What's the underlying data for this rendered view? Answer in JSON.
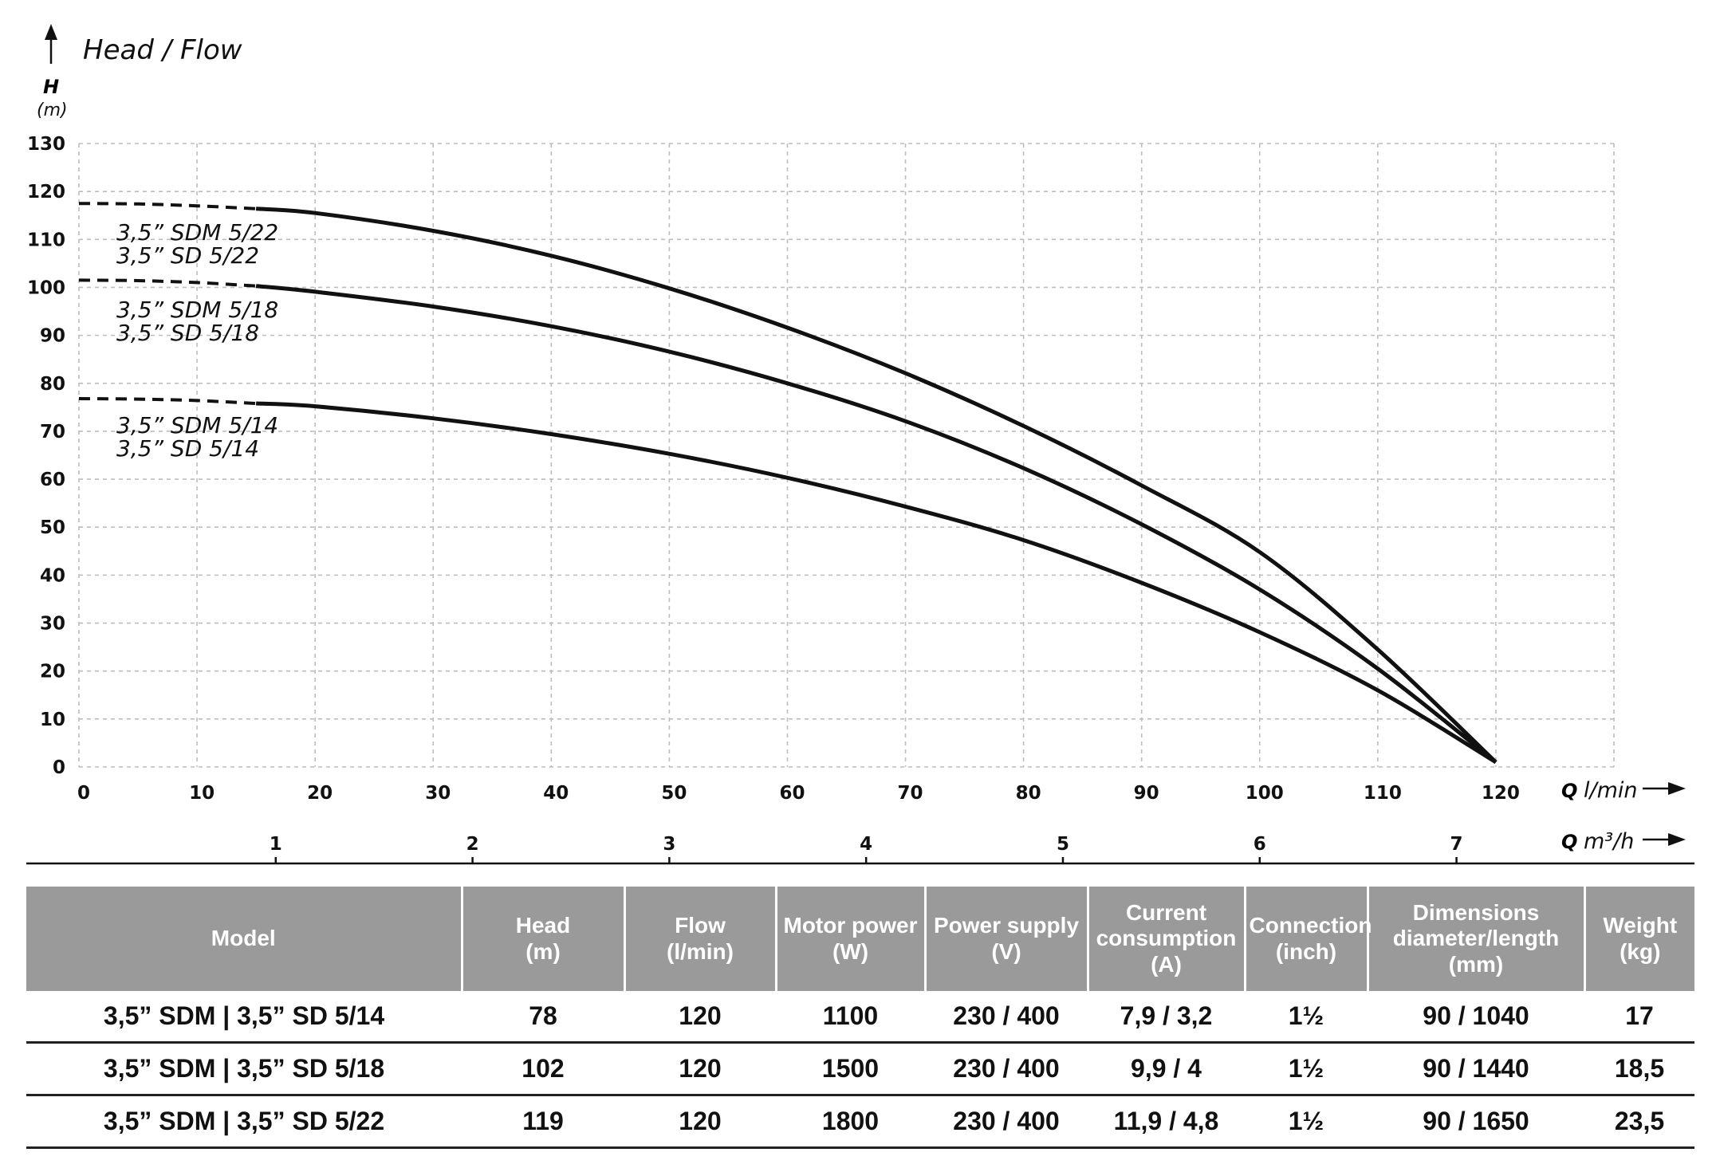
{
  "chart_data": {
    "type": "line",
    "title": "Head / Flow",
    "ylabel": "H",
    "yunit": "(m)",
    "xlabel": "Q",
    "xunit": "l/min",
    "x2label": "Q",
    "x2unit": "m³/h",
    "xlim": [
      0,
      130
    ],
    "ylim": [
      0,
      130
    ],
    "yticks": [
      0,
      10,
      20,
      30,
      40,
      50,
      60,
      70,
      80,
      90,
      100,
      110,
      120,
      130
    ],
    "xticks": [
      0,
      10,
      20,
      30,
      40,
      50,
      60,
      70,
      80,
      90,
      100,
      110,
      120
    ],
    "x2ticks": [
      1,
      2,
      3,
      4,
      5,
      6,
      7
    ],
    "grid": true,
    "series": [
      {
        "name": "3,5” SDM 5/22",
        "name2": "3,5” SD 5/22",
        "dashed_x": [
          0,
          5,
          10,
          15
        ],
        "dashed_y": [
          117.5,
          117.4,
          117,
          116.4
        ],
        "x": [
          15,
          20,
          30,
          40,
          50,
          60,
          70,
          80,
          90,
          100,
          110,
          120
        ],
        "y": [
          116.4,
          115.5,
          111.8,
          106.6,
          99.8,
          91.6,
          82.1,
          71.1,
          58.7,
          44.8,
          24.5,
          1
        ]
      },
      {
        "name": "3,5” SDM 5/18",
        "name2": "3,5” SD 5/18",
        "dashed_x": [
          0,
          5,
          10,
          15
        ],
        "dashed_y": [
          101.5,
          101.4,
          101,
          100.3
        ],
        "x": [
          15,
          20,
          30,
          40,
          50,
          60,
          70,
          80,
          90,
          100,
          110,
          120
        ],
        "y": [
          100.3,
          99.1,
          96,
          91.9,
          86.6,
          80,
          72.1,
          62.3,
          50.6,
          37,
          20.5,
          1
        ]
      },
      {
        "name": "3,5” SDM 5/14",
        "name2": "3,5” SD 5/14",
        "dashed_x": [
          0,
          5,
          10,
          15
        ],
        "dashed_y": [
          76.8,
          76.7,
          76.4,
          75.8
        ],
        "x": [
          15,
          20,
          30,
          40,
          50,
          60,
          70,
          80,
          90,
          100,
          110,
          120
        ],
        "y": [
          75.8,
          75.2,
          72.7,
          69.4,
          65.3,
          60.3,
          54.3,
          47.3,
          38.4,
          28.1,
          16,
          1
        ]
      }
    ]
  },
  "table": {
    "headers": [
      "Model",
      "Head\n(m)",
      "Flow\n(l/min)",
      "Motor power\n(W)",
      "Power supply\n(V)",
      "Current\nconsumption\n(A)",
      "Connection\n(inch)",
      "Dimensions\ndiameter/length\n(mm)",
      "Weight\n(kg)"
    ],
    "rows": [
      [
        "3,5” SDM | 3,5” SD 5/14",
        "78",
        "120",
        "1100",
        "230 / 400",
        "7,9 / 3,2",
        "1½",
        "90 / 1040",
        "17"
      ],
      [
        "3,5” SDM | 3,5” SD 5/18",
        "102",
        "120",
        "1500",
        "230 / 400",
        "9,9 / 4",
        "1½",
        "90 / 1440",
        "18,5"
      ],
      [
        "3,5” SDM | 3,5” SD 5/22",
        "119",
        "120",
        "1800",
        "230 / 400",
        "11,9 / 4,8",
        "1½",
        "90 / 1650",
        "23,5"
      ]
    ]
  }
}
